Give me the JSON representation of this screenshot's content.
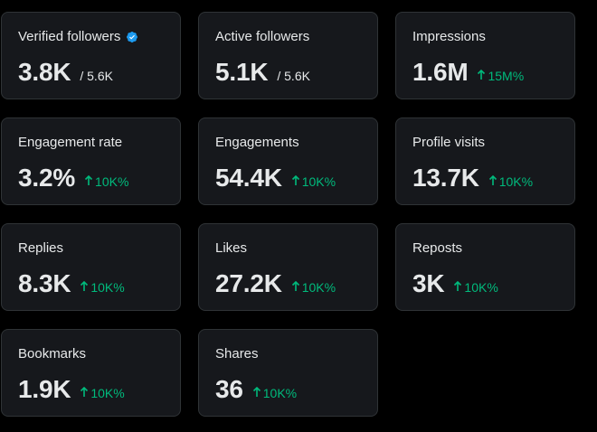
{
  "cards": [
    {
      "label": "Verified followers",
      "value": "3.8K",
      "sub": "/ 5.6K",
      "verified": true
    },
    {
      "label": "Active followers",
      "value": "5.1K",
      "sub": "/ 5.6K"
    },
    {
      "label": "Impressions",
      "value": "1.6M",
      "delta": "15M%"
    },
    {
      "label": "Engagement rate",
      "value": "3.2%",
      "delta": "10K%"
    },
    {
      "label": "Engagements",
      "value": "54.4K",
      "delta": "10K%"
    },
    {
      "label": "Profile visits",
      "value": "13.7K",
      "delta": "10K%"
    },
    {
      "label": "Replies",
      "value": "8.3K",
      "delta": "10K%"
    },
    {
      "label": "Likes",
      "value": "27.2K",
      "delta": "10K%"
    },
    {
      "label": "Reposts",
      "value": "3K",
      "delta": "10K%"
    },
    {
      "label": "Bookmarks",
      "value": "1.9K",
      "delta": "10K%"
    },
    {
      "label": "Shares",
      "value": "36",
      "delta": "10K%"
    }
  ],
  "colors": {
    "background": "#000000",
    "card": "#16181c",
    "border": "#2f3336",
    "text": "#e7e9ea",
    "positive": "#00ba7c",
    "verified": "#1d9bf0"
  },
  "icons": {
    "verified": "verified-badge-icon",
    "up": "arrow-up-icon"
  }
}
